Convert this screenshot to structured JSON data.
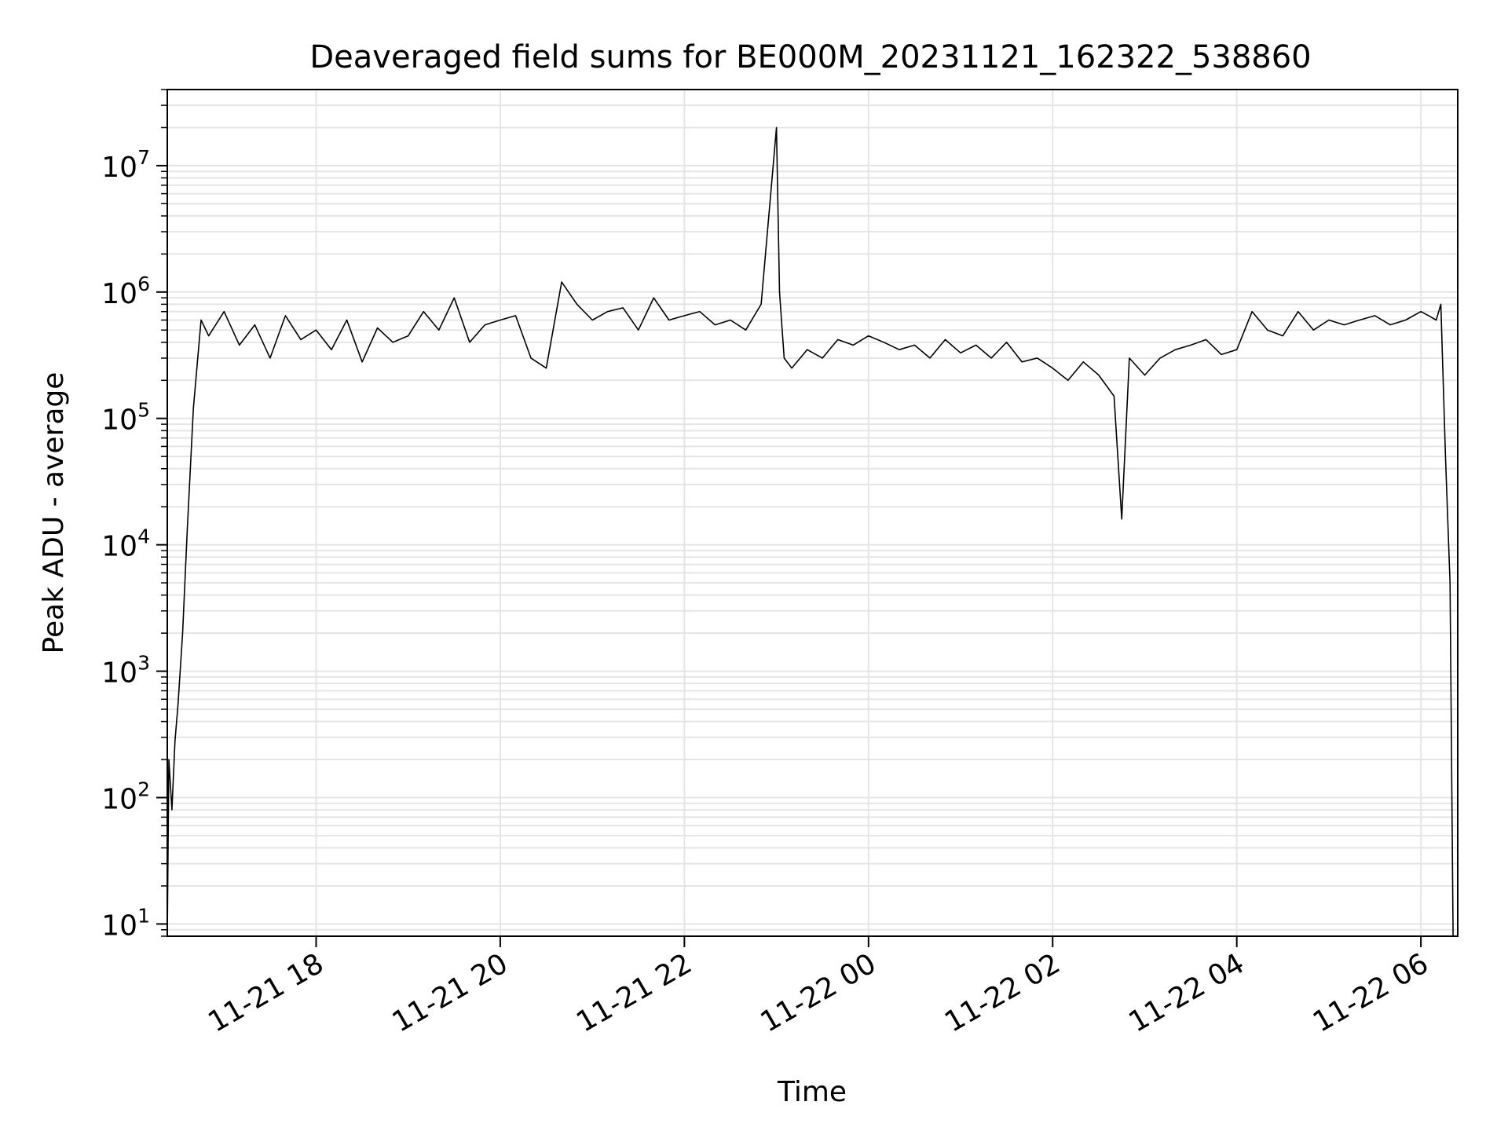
{
  "chart_data": {
    "type": "line",
    "title": "Deaveraged field sums for BE000M_20231121_162322_538860",
    "xlabel": "Time",
    "ylabel": "Peak ADU - average",
    "y_scale": "log",
    "ylim": [
      8,
      40000000
    ],
    "xlim": [
      "2023-11-21 16:23",
      "2023-11-22 06:24"
    ],
    "grid": true,
    "x_ticks": [
      {
        "value": "2023-11-21 18:00",
        "label": "11-21 18"
      },
      {
        "value": "2023-11-21 20:00",
        "label": "11-21 20"
      },
      {
        "value": "2023-11-21 22:00",
        "label": "11-21 22"
      },
      {
        "value": "2023-11-22 00:00",
        "label": "11-22 00"
      },
      {
        "value": "2023-11-22 02:00",
        "label": "11-22 02"
      },
      {
        "value": "2023-11-22 04:00",
        "label": "11-22 04"
      },
      {
        "value": "2023-11-22 06:00",
        "label": "11-22 06"
      }
    ],
    "y_ticks": [
      {
        "value": 10,
        "base": "10",
        "exp": "1"
      },
      {
        "value": 100,
        "base": "10",
        "exp": "2"
      },
      {
        "value": 1000,
        "base": "10",
        "exp": "3"
      },
      {
        "value": 10000,
        "base": "10",
        "exp": "4"
      },
      {
        "value": 100000,
        "base": "10",
        "exp": "5"
      },
      {
        "value": 1000000,
        "base": "10",
        "exp": "6"
      },
      {
        "value": 10000000,
        "base": "10",
        "exp": "7"
      }
    ],
    "line_color": "#000000",
    "grid_color": "#e5e5e5",
    "series": [
      {
        "x": [
          "2023-11-21 16:23",
          "2023-11-21 16:24",
          "2023-11-21 16:26",
          "2023-11-21 16:28",
          "2023-11-21 16:30",
          "2023-11-21 16:33",
          "2023-11-21 16:36",
          "2023-11-21 16:40",
          "2023-11-21 16:45",
          "2023-11-21 16:50",
          "2023-11-21 17:00",
          "2023-11-21 17:10",
          "2023-11-21 17:20",
          "2023-11-21 17:30",
          "2023-11-21 17:40",
          "2023-11-21 17:50",
          "2023-11-21 18:00",
          "2023-11-21 18:10",
          "2023-11-21 18:20",
          "2023-11-21 18:30",
          "2023-11-21 18:40",
          "2023-11-21 18:50",
          "2023-11-21 19:00",
          "2023-11-21 19:10",
          "2023-11-21 19:20",
          "2023-11-21 19:30",
          "2023-11-21 19:40",
          "2023-11-21 19:50",
          "2023-11-21 20:00",
          "2023-11-21 20:10",
          "2023-11-21 20:20",
          "2023-11-21 20:30",
          "2023-11-21 20:40",
          "2023-11-21 20:50",
          "2023-11-21 21:00",
          "2023-11-21 21:10",
          "2023-11-21 21:20",
          "2023-11-21 21:30",
          "2023-11-21 21:40",
          "2023-11-21 21:50",
          "2023-11-21 22:00",
          "2023-11-21 22:10",
          "2023-11-21 22:20",
          "2023-11-21 22:30",
          "2023-11-21 22:40",
          "2023-11-21 22:50",
          "2023-11-21 23:00",
          "2023-11-21 23:02",
          "2023-11-21 23:05",
          "2023-11-21 23:10",
          "2023-11-21 23:20",
          "2023-11-21 23:30",
          "2023-11-21 23:40",
          "2023-11-21 23:50",
          "2023-11-22 00:00",
          "2023-11-22 00:10",
          "2023-11-22 00:20",
          "2023-11-22 00:30",
          "2023-11-22 00:40",
          "2023-11-22 00:50",
          "2023-11-22 01:00",
          "2023-11-22 01:10",
          "2023-11-22 01:20",
          "2023-11-22 01:30",
          "2023-11-22 01:40",
          "2023-11-22 01:50",
          "2023-11-22 02:00",
          "2023-11-22 02:10",
          "2023-11-22 02:20",
          "2023-11-22 02:30",
          "2023-11-22 02:40",
          "2023-11-22 02:45",
          "2023-11-22 02:50",
          "2023-11-22 03:00",
          "2023-11-22 03:10",
          "2023-11-22 03:20",
          "2023-11-22 03:30",
          "2023-11-22 03:40",
          "2023-11-22 03:50",
          "2023-11-22 04:00",
          "2023-11-22 04:10",
          "2023-11-22 04:20",
          "2023-11-22 04:30",
          "2023-11-22 04:40",
          "2023-11-22 04:50",
          "2023-11-22 05:00",
          "2023-11-22 05:10",
          "2023-11-22 05:20",
          "2023-11-22 05:30",
          "2023-11-22 05:40",
          "2023-11-22 05:50",
          "2023-11-22 06:00",
          "2023-11-22 06:05",
          "2023-11-22 06:10",
          "2023-11-22 06:13",
          "2023-11-22 06:16",
          "2023-11-22 06:19",
          "2023-11-22 06:21"
        ],
        "y": [
          8,
          200,
          80,
          280,
          550,
          2000,
          13000,
          120000,
          600000,
          450000,
          700000,
          380000,
          550000,
          300000,
          650000,
          420000,
          500000,
          350000,
          600000,
          280000,
          520000,
          400000,
          450000,
          700000,
          500000,
          900000,
          400000,
          550000,
          600000,
          650000,
          300000,
          250000,
          1200000,
          800000,
          600000,
          700000,
          750000,
          500000,
          900000,
          600000,
          650000,
          700000,
          550000,
          600000,
          500000,
          800000,
          20000000,
          1000000,
          300000,
          250000,
          350000,
          300000,
          420000,
          380000,
          450000,
          400000,
          350000,
          380000,
          300000,
          420000,
          330000,
          380000,
          300000,
          400000,
          280000,
          300000,
          250000,
          200000,
          280000,
          220000,
          150000,
          16000,
          300000,
          220000,
          300000,
          350000,
          380000,
          420000,
          320000,
          350000,
          700000,
          500000,
          450000,
          700000,
          500000,
          600000,
          550000,
          600000,
          650000,
          550000,
          600000,
          700000,
          650000,
          600000,
          800000,
          50000,
          5000,
          8
        ]
      }
    ]
  }
}
